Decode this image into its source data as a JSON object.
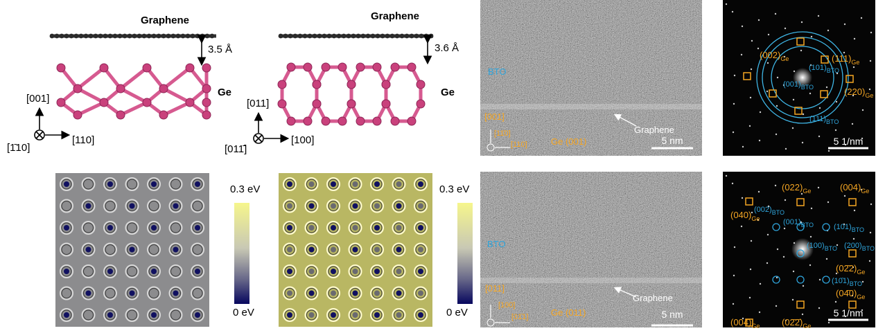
{
  "structures": [
    {
      "graphene": "Graphene",
      "spacing": "3.5 Å",
      "substrate": "Ge",
      "axes": {
        "up": "[001]",
        "out": "[1̄10]",
        "right": "[110]"
      }
    },
    {
      "graphene": "Graphene",
      "spacing": "3.6 Å",
      "substrate": "Ge",
      "axes": {
        "up": "[011]",
        "out": "[011̄]",
        "right": "[100]"
      }
    }
  ],
  "potential_maps": [
    {
      "max": "0.3 eV",
      "min": "0 eV"
    },
    {
      "max": "0.3 eV",
      "min": "0 eV"
    }
  ],
  "tem_images": [
    {
      "layer": "BTO",
      "direction": "[001]",
      "axis_up": "[11̄0]",
      "axis_right": "[110]",
      "substrate": "Ge (001)",
      "interface": "Graphene",
      "scale": "5 nm"
    },
    {
      "layer": "BTO",
      "direction": "[011]",
      "axis_up": "[100]",
      "axis_right": "[01̄1]",
      "substrate": "Ge (011)",
      "interface": "Graphene",
      "scale": "5 nm"
    }
  ],
  "diffraction": [
    {
      "spots": [
        {
          "text": "(002)",
          "sub": "Ge"
        },
        {
          "text": "(101)",
          "sub": "BTO"
        },
        {
          "text": "(111)",
          "sub": "Ge"
        },
        {
          "text": "(001)",
          "sub": "BTO"
        },
        {
          "text": "(220)",
          "sub": "Ge"
        },
        {
          "text": "(111)",
          "sub": "BTO"
        }
      ],
      "scale": "5 1/nm"
    },
    {
      "spots": [
        {
          "text": "(022)",
          "sub": "Ge"
        },
        {
          "text": "(004)",
          "sub": "Ge"
        },
        {
          "text": "(040)",
          "sub": "Ge"
        },
        {
          "text": "(002)",
          "sub": "BTO"
        },
        {
          "text": "(001)",
          "sub": "BTO"
        },
        {
          "text": "(101)",
          "sub": "BTO"
        },
        {
          "text": "(100)",
          "sub": "BTO"
        },
        {
          "text": "(200)",
          "sub": "BTO"
        },
        {
          "text": "(02̄2)",
          "sub": "Ge"
        },
        {
          "text": "(10̄1)",
          "sub": "BTO"
        },
        {
          "text": "(04̄0)",
          "sub": "Ge"
        },
        {
          "text": "(004̄)",
          "sub": "Ge"
        },
        {
          "text": "(02̄2̄)",
          "sub": "Ge"
        }
      ],
      "scale": "5 1/nm"
    }
  ]
}
